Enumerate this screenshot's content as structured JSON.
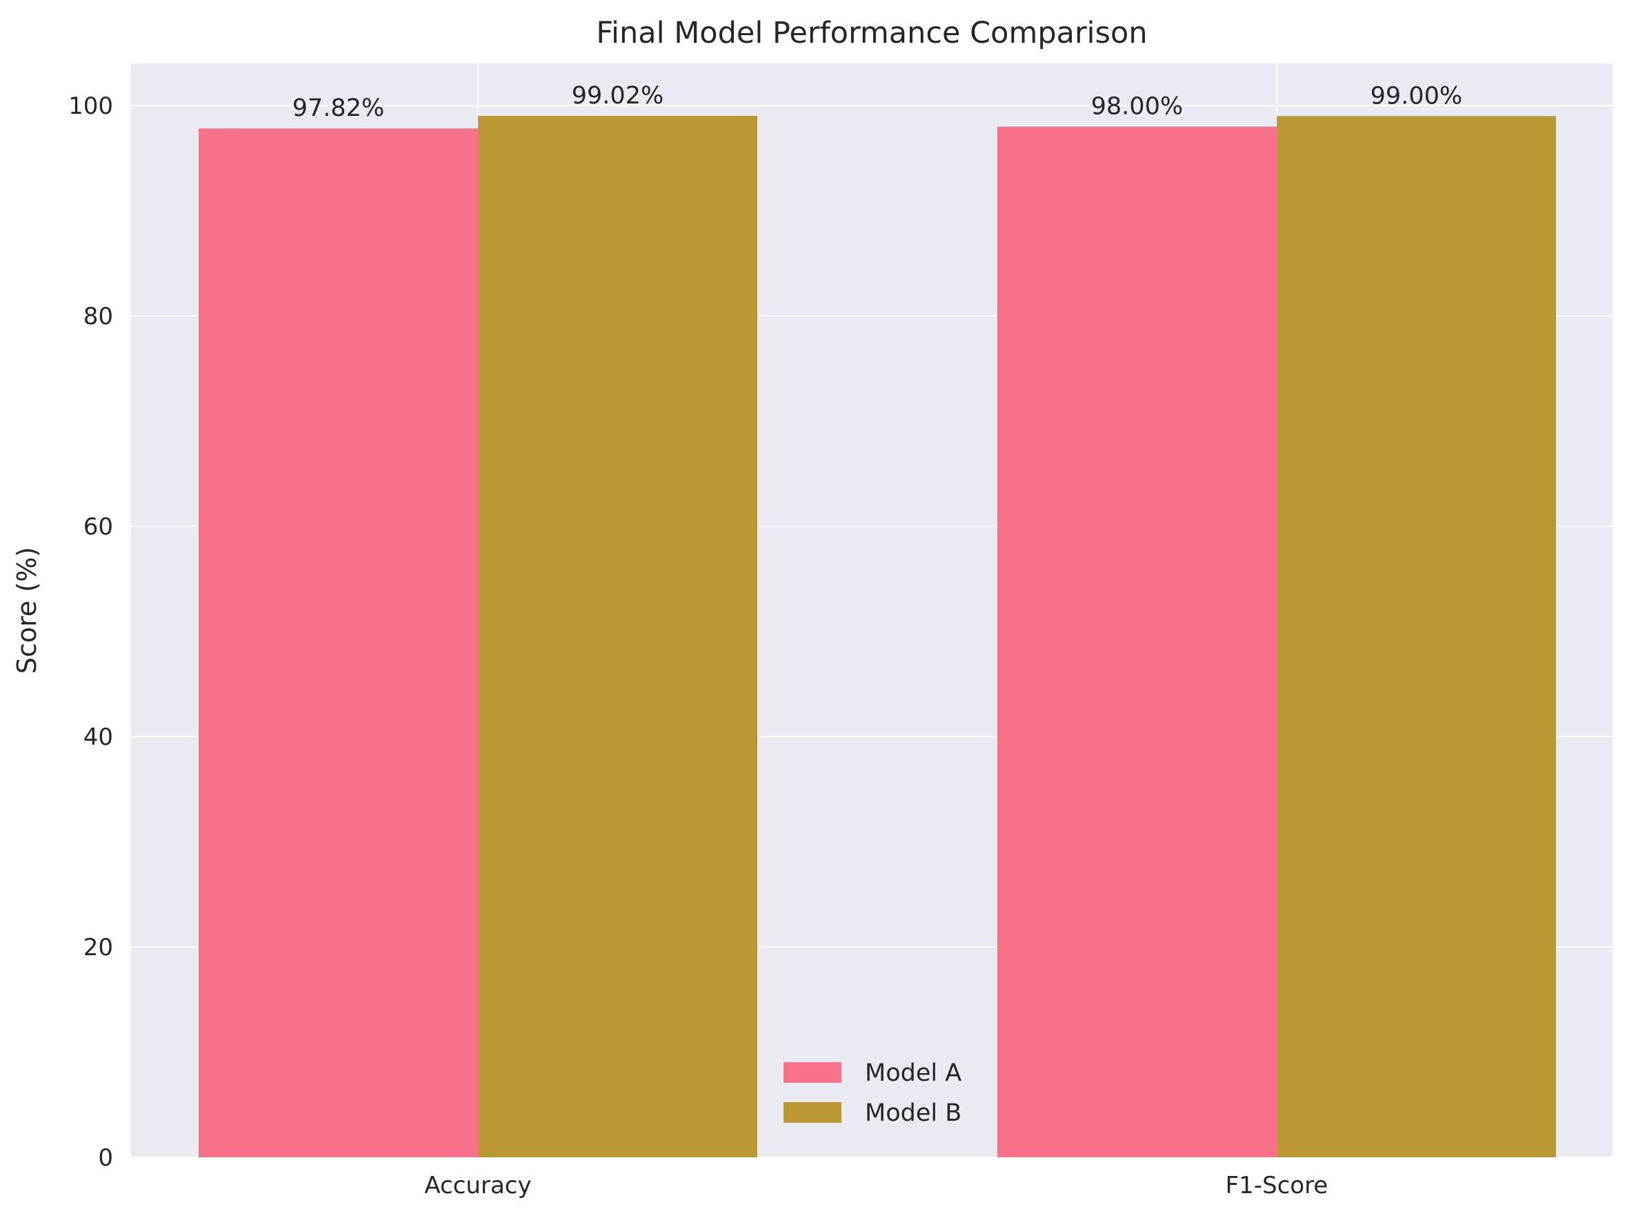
{
  "chart_data": {
    "type": "bar",
    "title": "Final Model Performance Comparison",
    "xlabel": "",
    "ylabel": "Score (%)",
    "categories": [
      "Accuracy",
      "F1-Score"
    ],
    "series": [
      {
        "name": "Model A",
        "values": [
          97.82,
          98.0
        ],
        "labels": [
          "97.82%",
          "98.00%"
        ],
        "color": "#f77189"
      },
      {
        "name": "Model B",
        "values": [
          99.02,
          99.0
        ],
        "labels": [
          "99.02%",
          "99.00%"
        ],
        "color": "#bb9832"
      }
    ],
    "yticks": [
      0,
      20,
      40,
      60,
      80,
      100
    ],
    "ylim": [
      0,
      104
    ],
    "grid": true,
    "legend_position": "bottom-center",
    "colors": {
      "plot_background": "#eaeaf2",
      "grid": "#ffffff",
      "text": "#262626"
    }
  }
}
